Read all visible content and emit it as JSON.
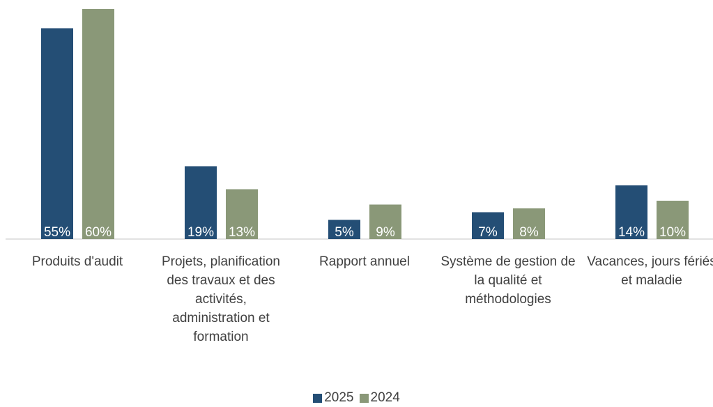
{
  "chart_data": {
    "type": "bar",
    "categories": [
      "Produits d'audit",
      "Projets, planification des travaux et des activités, administration et formation",
      "Rapport annuel",
      "Système de gestion de la qualité et méthodologies",
      "Vacances, jours fériés et maladie"
    ],
    "series": [
      {
        "name": "2025",
        "color": "#244e75",
        "values": [
          55,
          19,
          5,
          7,
          14
        ],
        "value_labels": [
          "55%",
          "19%",
          "5%",
          "7%",
          "14%"
        ]
      },
      {
        "name": "2024",
        "color": "#8a9878",
        "values": [
          60,
          13,
          9,
          8,
          10
        ],
        "value_labels": [
          "60%",
          "13%",
          "9%",
          "8%",
          "10%"
        ]
      }
    ],
    "ylim": [
      0,
      60
    ],
    "legend": "bottom"
  }
}
